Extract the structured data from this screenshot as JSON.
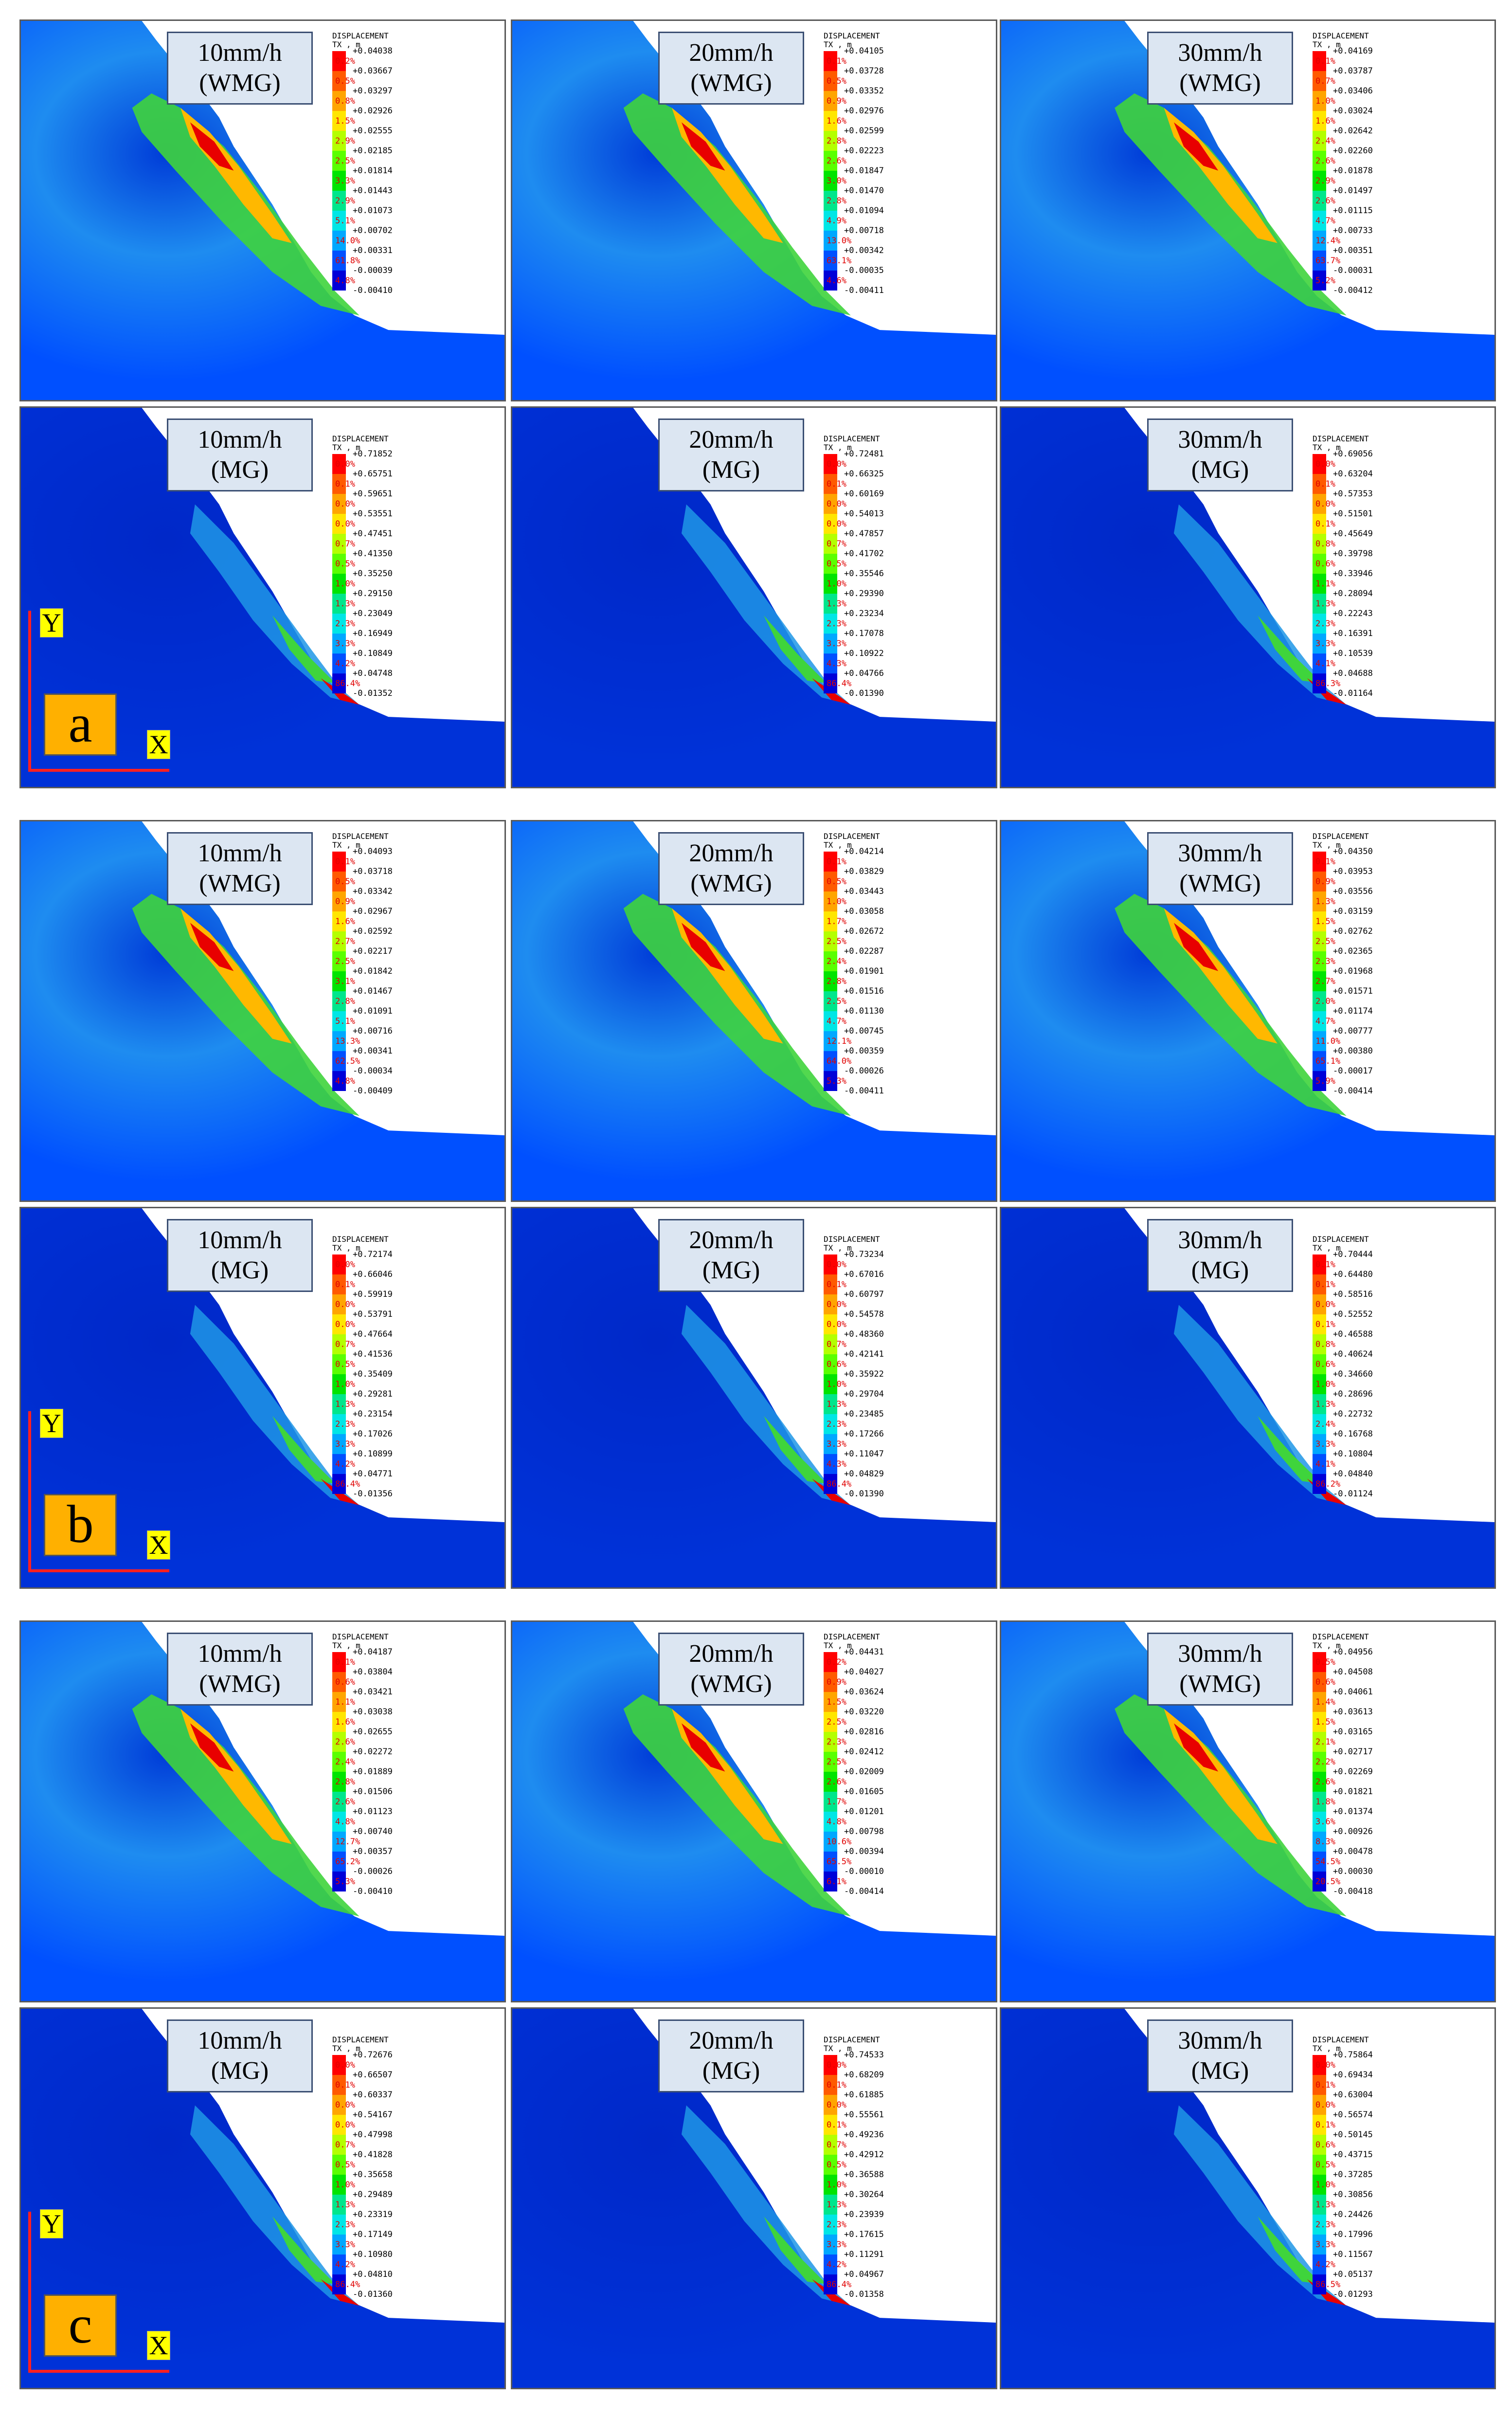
{
  "legend_title": [
    "DISPLACEMENT",
    "TX , m"
  ],
  "percent_row": {
    "WMG": [
      "0.2%",
      "0.5%",
      "0.8%",
      "1.5%",
      "2.9%",
      "2.5%",
      "3.3%",
      "2.9%",
      "5.1%",
      "14.0%",
      "61.8%",
      "4.8%"
    ],
    "MG": [
      "0.0%",
      "0.1%",
      "0.0%",
      "0.0%",
      "0.7%",
      "0.5%",
      "1.0%",
      "1.3%",
      "2.3%",
      "3.3%",
      "4.2%",
      "86.4%"
    ]
  },
  "colors": {
    "legend": [
      "#ff0000",
      "#ff5a00",
      "#ffa500",
      "#ffe600",
      "#b4ff00",
      "#5aff00",
      "#00e400",
      "#00e68c",
      "#00e6e6",
      "#00a8ff",
      "#0050ff",
      "#0000d8"
    ],
    "terrain_bg": "#0028c8",
    "axis": "#ff2020",
    "case_box": "#dce6f2",
    "group_box": "#ffb000"
  },
  "groups": [
    {
      "letter": "a",
      "panels": [
        {
          "case": "10mm/h",
          "model": "(WMG)",
          "values": [
            "+0.04038",
            "+0.03667",
            "+0.03297",
            "+0.02926",
            "+0.02555",
            "+0.02185",
            "+0.01814",
            "+0.01443",
            "+0.01073",
            "+0.00702",
            "+0.00331",
            "-0.00039",
            "-0.00410"
          ],
          "pct": [
            "0.2%",
            "0.5%",
            "0.8%",
            "1.5%",
            "2.9%",
            "2.5%",
            "3.3%",
            "2.9%",
            "5.1%",
            "14.0%",
            "61.8%",
            "4.8%"
          ]
        },
        {
          "case": "20mm/h",
          "model": "(WMG)",
          "values": [
            "+0.04105",
            "+0.03728",
            "+0.03352",
            "+0.02976",
            "+0.02599",
            "+0.02223",
            "+0.01847",
            "+0.01470",
            "+0.01094",
            "+0.00718",
            "+0.00342",
            "-0.00035",
            "-0.00411"
          ],
          "pct": [
            "0.1%",
            "0.5%",
            "0.9%",
            "1.6%",
            "2.8%",
            "2.6%",
            "3.0%",
            "2.8%",
            "4.9%",
            "13.0%",
            "63.1%",
            "4.6%"
          ]
        },
        {
          "case": "30mm/h",
          "model": "(WMG)",
          "values": [
            "+0.04169",
            "+0.03787",
            "+0.03406",
            "+0.03024",
            "+0.02642",
            "+0.02260",
            "+0.01878",
            "+0.01497",
            "+0.01115",
            "+0.00733",
            "+0.00351",
            "-0.00031",
            "-0.00412"
          ],
          "pct": [
            "0.1%",
            "0.7%",
            "1.0%",
            "1.6%",
            "2.4%",
            "2.6%",
            "2.9%",
            "2.6%",
            "4.7%",
            "12.4%",
            "63.7%",
            "5.2%"
          ]
        },
        {
          "case": "10mm/h",
          "model": "(MG)",
          "values": [
            "+0.71852",
            "+0.65751",
            "+0.59651",
            "+0.53551",
            "+0.47451",
            "+0.41350",
            "+0.35250",
            "+0.29150",
            "+0.23049",
            "+0.16949",
            "+0.10849",
            "+0.04748",
            "-0.01352"
          ],
          "pct": [
            "0.0%",
            "0.1%",
            "0.0%",
            "0.0%",
            "0.7%",
            "0.5%",
            "1.0%",
            "1.3%",
            "2.3%",
            "3.3%",
            "4.2%",
            "86.4%"
          ]
        },
        {
          "case": "20mm/h",
          "model": "(MG)",
          "values": [
            "+0.72481",
            "+0.66325",
            "+0.60169",
            "+0.54013",
            "+0.47857",
            "+0.41702",
            "+0.35546",
            "+0.29390",
            "+0.23234",
            "+0.17078",
            "+0.10922",
            "+0.04766",
            "-0.01390"
          ],
          "pct": [
            "0.0%",
            "0.1%",
            "0.0%",
            "0.0%",
            "0.7%",
            "0.5%",
            "1.0%",
            "1.3%",
            "2.3%",
            "3.3%",
            "4.3%",
            "86.4%"
          ]
        },
        {
          "case": "30mm/h",
          "model": "(MG)",
          "values": [
            "+0.69056",
            "+0.63204",
            "+0.57353",
            "+0.51501",
            "+0.45649",
            "+0.39798",
            "+0.33946",
            "+0.28094",
            "+0.22243",
            "+0.16391",
            "+0.10539",
            "+0.04688",
            "-0.01164"
          ],
          "pct": [
            "0.0%",
            "0.1%",
            "0.0%",
            "0.1%",
            "0.8%",
            "0.6%",
            "1.1%",
            "1.3%",
            "2.3%",
            "3.3%",
            "4.1%",
            "86.3%"
          ]
        }
      ]
    },
    {
      "letter": "b",
      "panels": [
        {
          "case": "10mm/h",
          "model": "(WMG)",
          "values": [
            "+0.04093",
            "+0.03718",
            "+0.03342",
            "+0.02967",
            "+0.02592",
            "+0.02217",
            "+0.01842",
            "+0.01467",
            "+0.01091",
            "+0.00716",
            "+0.00341",
            "-0.00034",
            "-0.00409"
          ],
          "pct": [
            "0.1%",
            "0.5%",
            "0.9%",
            "1.6%",
            "2.7%",
            "2.5%",
            "3.1%",
            "2.8%",
            "5.1%",
            "13.3%",
            "62.5%",
            "4.8%"
          ]
        },
        {
          "case": "20mm/h",
          "model": "(WMG)",
          "values": [
            "+0.04214",
            "+0.03829",
            "+0.03443",
            "+0.03058",
            "+0.02672",
            "+0.02287",
            "+0.01901",
            "+0.01516",
            "+0.01130",
            "+0.00745",
            "+0.00359",
            "-0.00026",
            "-0.00411"
          ],
          "pct": [
            "0.1%",
            "0.5%",
            "1.0%",
            "1.7%",
            "2.5%",
            "2.4%",
            "2.8%",
            "2.5%",
            "4.7%",
            "12.1%",
            "64.0%",
            "5.3%"
          ]
        },
        {
          "case": "30mm/h",
          "model": "(WMG)",
          "values": [
            "+0.04350",
            "+0.03953",
            "+0.03556",
            "+0.03159",
            "+0.02762",
            "+0.02365",
            "+0.01968",
            "+0.01571",
            "+0.01174",
            "+0.00777",
            "+0.00380",
            "-0.00017",
            "-0.00414"
          ],
          "pct": [
            "0.1%",
            "0.9%",
            "1.3%",
            "1.5%",
            "2.5%",
            "2.3%",
            "2.7%",
            "2.0%",
            "4.7%",
            "11.0%",
            "65.1%",
            "5.9%"
          ]
        },
        {
          "case": "10mm/h",
          "model": "(MG)",
          "values": [
            "+0.72174",
            "+0.66046",
            "+0.59919",
            "+0.53791",
            "+0.47664",
            "+0.41536",
            "+0.35409",
            "+0.29281",
            "+0.23154",
            "+0.17026",
            "+0.10899",
            "+0.04771",
            "-0.01356"
          ],
          "pct": [
            "0.0%",
            "0.1%",
            "0.0%",
            "0.0%",
            "0.7%",
            "0.5%",
            "1.0%",
            "1.3%",
            "2.3%",
            "3.3%",
            "4.2%",
            "86.4%"
          ]
        },
        {
          "case": "20mm/h",
          "model": "(MG)",
          "values": [
            "+0.73234",
            "+0.67016",
            "+0.60797",
            "+0.54578",
            "+0.48360",
            "+0.42141",
            "+0.35922",
            "+0.29704",
            "+0.23485",
            "+0.17266",
            "+0.11047",
            "+0.04829",
            "-0.01390"
          ],
          "pct": [
            "0.0%",
            "0.1%",
            "0.0%",
            "0.0%",
            "0.7%",
            "0.6%",
            "1.0%",
            "1.3%",
            "2.3%",
            "3.3%",
            "4.3%",
            "86.4%"
          ]
        },
        {
          "case": "30mm/h",
          "model": "(MG)",
          "values": [
            "+0.70444",
            "+0.64480",
            "+0.58516",
            "+0.52552",
            "+0.46588",
            "+0.40624",
            "+0.34660",
            "+0.28696",
            "+0.22732",
            "+0.16768",
            "+0.10804",
            "+0.04840",
            "-0.01124"
          ],
          "pct": [
            "0.1%",
            "0.1%",
            "0.0%",
            "0.1%",
            "0.8%",
            "0.6%",
            "1.0%",
            "1.3%",
            "2.4%",
            "3.3%",
            "4.1%",
            "86.2%"
          ]
        }
      ]
    },
    {
      "letter": "c",
      "panels": [
        {
          "case": "10mm/h",
          "model": "(WMG)",
          "values": [
            "+0.04187",
            "+0.03804",
            "+0.03421",
            "+0.03038",
            "+0.02655",
            "+0.02272",
            "+0.01889",
            "+0.01506",
            "+0.01123",
            "+0.00740",
            "+0.00357",
            "-0.00026",
            "-0.00410"
          ],
          "pct": [
            "0.1%",
            "0.6%",
            "1.1%",
            "1.6%",
            "2.6%",
            "2.4%",
            "2.8%",
            "2.6%",
            "4.8%",
            "12.7%",
            "65.2%",
            "5.3%"
          ]
        },
        {
          "case": "20mm/h",
          "model": "(WMG)",
          "values": [
            "+0.04431",
            "+0.04027",
            "+0.03624",
            "+0.03220",
            "+0.02816",
            "+0.02412",
            "+0.02009",
            "+0.01605",
            "+0.01201",
            "+0.00798",
            "+0.00394",
            "-0.00010",
            "-0.00414"
          ],
          "pct": [
            "0.2%",
            "0.9%",
            "1.5%",
            "2.5%",
            "2.3%",
            "2.5%",
            "2.6%",
            "1.7%",
            "4.8%",
            "10.6%",
            "65.5%",
            "6.1%"
          ]
        },
        {
          "case": "30mm/h",
          "model": "(WMG)",
          "values": [
            "+0.04956",
            "+0.04508",
            "+0.04061",
            "+0.03613",
            "+0.03165",
            "+0.02717",
            "+0.02269",
            "+0.01821",
            "+0.01374",
            "+0.00926",
            "+0.00478",
            "+0.00030",
            "-0.00418"
          ],
          "pct": [
            "0.5%",
            "0.6%",
            "1.4%",
            "1.5%",
            "2.1%",
            "2.2%",
            "2.6%",
            "1.8%",
            "3.6%",
            "8.3%",
            "54.5%",
            "20.5%"
          ]
        },
        {
          "case": "10mm/h",
          "model": "(MG)",
          "values": [
            "+0.72676",
            "+0.66507",
            "+0.60337",
            "+0.54167",
            "+0.47998",
            "+0.41828",
            "+0.35658",
            "+0.29489",
            "+0.23319",
            "+0.17149",
            "+0.10980",
            "+0.04810",
            "-0.01360"
          ],
          "pct": [
            "0.0%",
            "0.1%",
            "0.0%",
            "0.0%",
            "0.7%",
            "0.5%",
            "1.0%",
            "1.3%",
            "2.3%",
            "3.3%",
            "4.2%",
            "86.4%"
          ]
        },
        {
          "case": "20mm/h",
          "model": "(MG)",
          "values": [
            "+0.74533",
            "+0.68209",
            "+0.61885",
            "+0.55561",
            "+0.49236",
            "+0.42912",
            "+0.36588",
            "+0.30264",
            "+0.23939",
            "+0.17615",
            "+0.11291",
            "+0.04967",
            "-0.01358"
          ],
          "pct": [
            "0.0%",
            "0.1%",
            "0.0%",
            "0.1%",
            "0.7%",
            "0.5%",
            "1.0%",
            "1.3%",
            "2.3%",
            "3.3%",
            "4.2%",
            "86.4%"
          ]
        },
        {
          "case": "30mm/h",
          "model": "(MG)",
          "values": [
            "+0.75864",
            "+0.69434",
            "+0.63004",
            "+0.56574",
            "+0.50145",
            "+0.43715",
            "+0.37285",
            "+0.30856",
            "+0.24426",
            "+0.17996",
            "+0.11567",
            "+0.05137",
            "-0.01293"
          ],
          "pct": [
            "0.0%",
            "0.1%",
            "0.0%",
            "0.1%",
            "0.6%",
            "0.5%",
            "1.0%",
            "1.3%",
            "2.3%",
            "3.3%",
            "4.2%",
            "86.5%"
          ]
        }
      ]
    }
  ],
  "axis_labels": {
    "y": "Y",
    "x": "X"
  }
}
